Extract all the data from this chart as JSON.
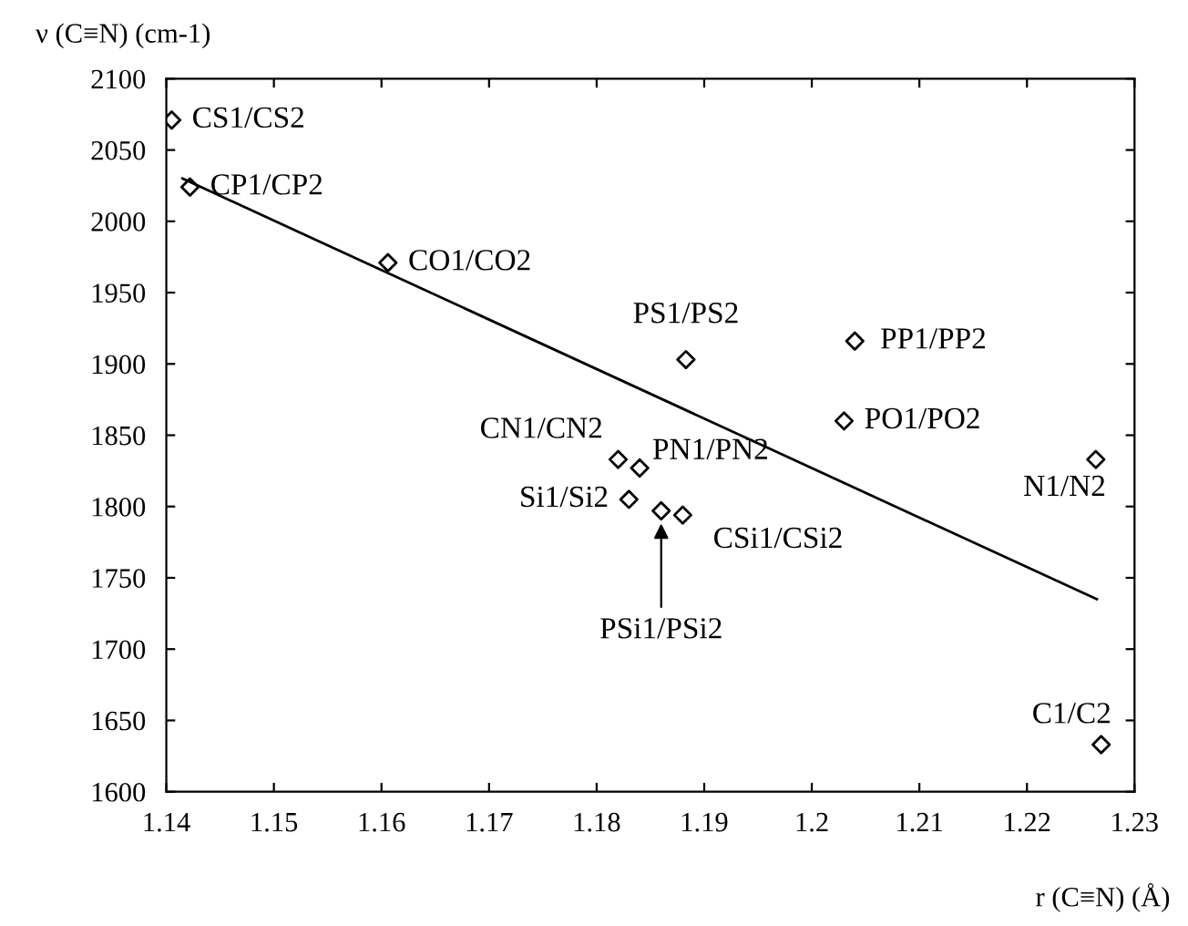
{
  "chart_data": {
    "type": "scatter",
    "xlabel": "r (C≡N) (Å)",
    "ylabel": "ν (C≡N) (cm-1)",
    "xlim": [
      1.14,
      1.23
    ],
    "xticks": [
      1.14,
      1.15,
      1.16,
      1.17,
      1.18,
      1.19,
      1.2,
      1.21,
      1.22,
      1.23
    ],
    "ylim": [
      1600,
      2100
    ],
    "yticks": [
      1600,
      1650,
      1700,
      1750,
      1800,
      1850,
      1900,
      1950,
      2000,
      2050,
      2100
    ],
    "grid": false,
    "legend": false,
    "series": [
      {
        "marker": "diamond",
        "color": "#000000",
        "x": [
          1.1405,
          1.1422,
          1.1606,
          1.1883,
          1.204,
          1.203,
          1.182,
          1.184,
          1.183,
          1.186,
          1.188,
          1.2264,
          1.2269
        ],
        "values": [
          2071,
          2024,
          1971,
          1903,
          1916,
          1860,
          1833,
          1827,
          1805,
          1797,
          1794,
          1833,
          1633
        ]
      },
      {
        "type": "line",
        "marker": "none",
        "line_style": "solid",
        "color": "#000000",
        "x": [
          1.1415,
          1.2265
        ],
        "values": [
          2030,
          1735
        ]
      }
    ],
    "annotations": [
      {
        "text": "CS1/CS2",
        "x": 1.1405,
        "y": 2071
      },
      {
        "text": "CP1/CP2",
        "x": 1.1422,
        "y": 2024
      },
      {
        "text": "CO1/CO2",
        "x": 1.1606,
        "y": 1971
      },
      {
        "text": "PS1/PS2",
        "x": 1.1883,
        "y": 1903
      },
      {
        "text": "PP1/PP2",
        "x": 1.204,
        "y": 1916
      },
      {
        "text": "PO1/PO2",
        "x": 1.203,
        "y": 1860
      },
      {
        "text": "CN1/CN2",
        "x": 1.182,
        "y": 1833
      },
      {
        "text": "PN1/PN2",
        "x": 1.184,
        "y": 1827
      },
      {
        "text": "Si1/Si2",
        "x": 1.183,
        "y": 1805
      },
      {
        "text": "PSi1/PSi2",
        "x": 1.186,
        "y": 1797
      },
      {
        "text": "CSi1/CSi2",
        "x": 1.188,
        "y": 1794
      },
      {
        "text": "N1/N2",
        "x": 1.2264,
        "y": 1833
      },
      {
        "text": "C1/C2",
        "x": 1.2269,
        "y": 1633
      }
    ]
  }
}
